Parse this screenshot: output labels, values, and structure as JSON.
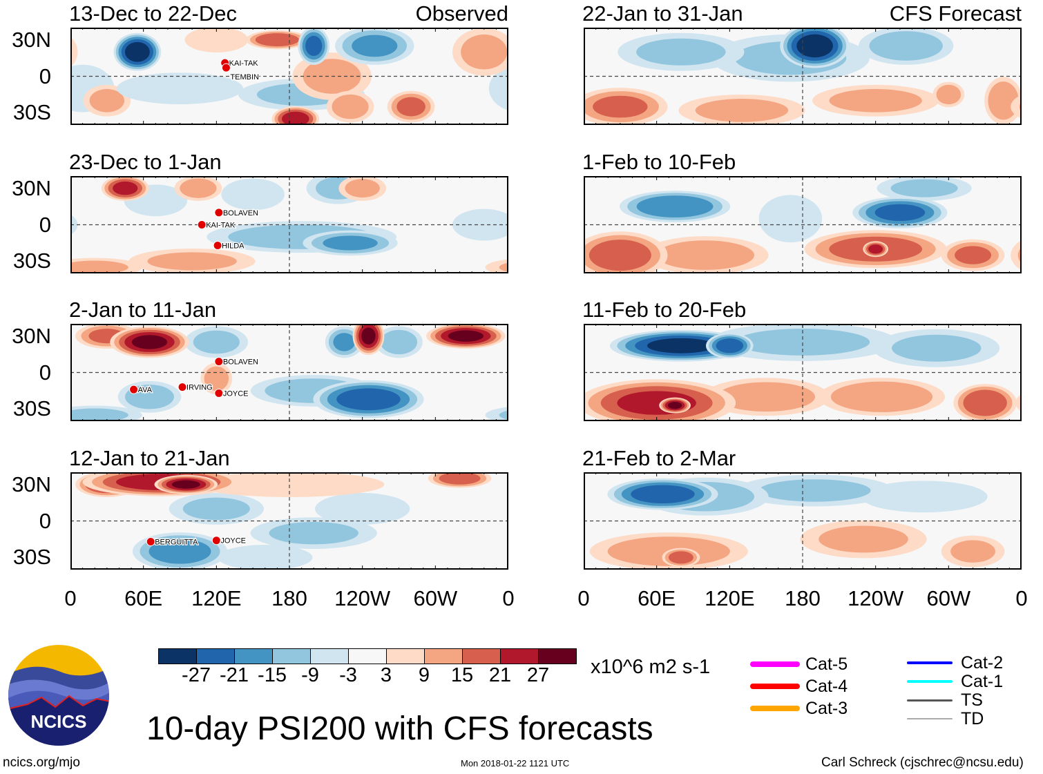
{
  "chart_data": {
    "type": "heatmap",
    "title": "10-day PSI200 with CFS forecasts",
    "units": "x10^6 m2 s-1",
    "colorbar": {
      "levels": [
        -27,
        -21,
        -15,
        -9,
        -3,
        3,
        9,
        15,
        21,
        27
      ],
      "colors": [
        "#0b3366",
        "#2166ac",
        "#4393c3",
        "#92c5de",
        "#d1e5f0",
        "#f7f7f7",
        "#fddbc7",
        "#f4a582",
        "#d6604d",
        "#b2182b",
        "#67001f"
      ]
    },
    "xticks": [
      "0",
      "60E",
      "120E",
      "180",
      "120W",
      "60W",
      "0"
    ],
    "yticks": [
      "30N",
      "0",
      "30S"
    ],
    "lon_range": [
      0,
      360
    ],
    "lat_range": [
      -40,
      40
    ],
    "column_headers": [
      "Observed",
      "CFS Forecast"
    ],
    "panels": [
      {
        "title": "13-Dec to 22-Dec",
        "column": 0,
        "row": 0,
        "anomalies": [
          [
            10,
            -10,
            -5,
            20,
            15
          ],
          [
            340,
            20,
            10,
            20,
            15
          ],
          [
            30,
            -20,
            10,
            15,
            10
          ],
          [
            120,
            30,
            8,
            20,
            8
          ],
          [
            90,
            -10,
            -6,
            40,
            10
          ],
          [
            190,
            -15,
            -9,
            40,
            10
          ],
          [
            215,
            0,
            10,
            25,
            15
          ],
          [
            230,
            -25,
            12,
            15,
            10
          ],
          [
            280,
            -25,
            16,
            15,
            10
          ],
          [
            55,
            20,
            -30,
            15,
            12
          ],
          [
            170,
            30,
            20,
            20,
            6
          ],
          [
            200,
            25,
            -22,
            10,
            12
          ],
          [
            250,
            25,
            -15,
            25,
            12
          ],
          [
            185,
            -35,
            24,
            15,
            8
          ]
        ],
        "storms": [
          {
            "name": "KAI-TAK",
            "lon": 127,
            "lat": 11
          },
          {
            "name": "TEMBIN",
            "lon": 128,
            "lat": 7
          }
        ]
      },
      {
        "title": "23-Dec to 1-Jan",
        "column": 0,
        "row": 1,
        "anomalies": [
          [
            340,
            0,
            -6,
            20,
            10
          ],
          [
            20,
            -35,
            9,
            30,
            6
          ],
          [
            100,
            -30,
            9,
            40,
            8
          ],
          [
            150,
            25,
            -6,
            20,
            10
          ],
          [
            220,
            30,
            -9,
            20,
            10
          ],
          [
            240,
            30,
            10,
            15,
            8
          ],
          [
            190,
            -10,
            -12,
            60,
            10
          ],
          [
            230,
            -15,
            -15,
            30,
            8
          ],
          [
            70,
            20,
            -8,
            20,
            10
          ],
          [
            105,
            30,
            12,
            15,
            8
          ],
          [
            45,
            30,
            22,
            15,
            8
          ]
        ],
        "storms": [
          {
            "name": "BOLAVEN",
            "lon": 122,
            "lat": 10
          },
          {
            "name": "KAI-TAK",
            "lon": 108,
            "lat": 0
          },
          {
            "name": "HILDA",
            "lon": 121,
            "lat": -17
          }
        ]
      },
      {
        "title": "2-Jan to 11-Jan",
        "column": 0,
        "row": 2,
        "anomalies": [
          [
            20,
            -35,
            -9,
            30,
            6
          ],
          [
            120,
            -5,
            12,
            10,
            10
          ],
          [
            200,
            -15,
            -12,
            40,
            10
          ],
          [
            65,
            -20,
            -12,
            20,
            10
          ],
          [
            120,
            25,
            -10,
            20,
            10
          ],
          [
            225,
            25,
            -15,
            12,
            10
          ],
          [
            270,
            25,
            -12,
            15,
            10
          ],
          [
            30,
            30,
            15,
            20,
            8
          ],
          [
            245,
            -22,
            -24,
            35,
            12
          ],
          [
            65,
            25,
            27,
            25,
            10
          ],
          [
            245,
            30,
            27,
            10,
            12
          ],
          [
            325,
            30,
            27,
            25,
            8
          ]
        ],
        "storms": [
          {
            "name": "BOLAVEN",
            "lon": 122,
            "lat": 9
          },
          {
            "name": "AVA",
            "lon": 52,
            "lat": -14
          },
          {
            "name": "IRVING",
            "lon": 92,
            "lat": -12
          },
          {
            "name": "JOYCE",
            "lon": 122,
            "lat": -17
          }
        ]
      },
      {
        "title": "12-Jan to 21-Jan",
        "column": 0,
        "row": 3,
        "anomalies": [
          [
            240,
            10,
            -6,
            30,
            10
          ],
          [
            160,
            -30,
            -6,
            30,
            8
          ],
          [
            120,
            10,
            -9,
            30,
            10
          ],
          [
            200,
            -10,
            -9,
            40,
            10
          ],
          [
            180,
            30,
            8,
            60,
            8
          ],
          [
            30,
            30,
            20,
            20,
            8
          ],
          [
            320,
            35,
            18,
            20,
            6
          ],
          [
            90,
            -25,
            -18,
            30,
            12
          ],
          [
            75,
            32,
            24,
            50,
            9
          ],
          [
            95,
            30,
            27,
            20,
            6
          ]
        ],
        "storms": [
          {
            "name": "BERGUITTA",
            "lon": 66,
            "lat": -17
          },
          {
            "name": "JOYCE",
            "lon": 120,
            "lat": -16
          }
        ]
      },
      {
        "title": "22-Jan to 31-Jan",
        "column": 1,
        "row": 0,
        "anomalies": [
          [
            170,
            15,
            -9,
            50,
            15
          ],
          [
            80,
            20,
            -9,
            40,
            12
          ],
          [
            265,
            25,
            -12,
            30,
            12
          ],
          [
            130,
            -28,
            10,
            40,
            10
          ],
          [
            240,
            -20,
            10,
            40,
            10
          ],
          [
            300,
            -15,
            12,
            10,
            8
          ],
          [
            345,
            -20,
            14,
            12,
            15
          ],
          [
            30,
            -25,
            15,
            30,
            12
          ],
          [
            190,
            25,
            -30,
            22,
            14
          ]
        ],
        "storms": []
      },
      {
        "title": "1-Feb to 10-Feb",
        "column": 1,
        "row": 1,
        "anomalies": [
          [
            170,
            5,
            -6,
            20,
            15
          ],
          [
            280,
            30,
            -9,
            30,
            8
          ],
          [
            100,
            -25,
            12,
            40,
            12
          ],
          [
            320,
            -25,
            15,
            20,
            10
          ],
          [
            30,
            -25,
            18,
            30,
            15
          ],
          [
            240,
            -20,
            18,
            45,
            12
          ],
          [
            75,
            15,
            -20,
            35,
            10
          ],
          [
            260,
            10,
            -22,
            30,
            10
          ],
          [
            240,
            -20,
            24,
            8,
            5
          ]
        ],
        "storms": []
      },
      {
        "title": "11-Feb to 20-Feb",
        "column": 1,
        "row": 2,
        "anomalies": [
          [
            180,
            25,
            -9,
            60,
            12
          ],
          [
            290,
            20,
            -9,
            40,
            12
          ],
          [
            150,
            -20,
            12,
            40,
            12
          ],
          [
            245,
            -20,
            14,
            40,
            12
          ],
          [
            330,
            -25,
            20,
            20,
            12
          ],
          [
            60,
            -25,
            21,
            50,
            15
          ],
          [
            80,
            22,
            -28,
            45,
            10
          ],
          [
            120,
            22,
            -24,
            15,
            8
          ],
          [
            75,
            -27,
            27,
            10,
            5
          ]
        ],
        "storms": []
      },
      {
        "title": "21-Feb to 2-Mar",
        "column": 1,
        "row": 3,
        "anomalies": [
          [
            280,
            20,
            -6,
            40,
            10
          ],
          [
            190,
            25,
            -9,
            50,
            10
          ],
          [
            100,
            20,
            -12,
            40,
            12
          ],
          [
            230,
            -15,
            9,
            40,
            12
          ],
          [
            320,
            -25,
            9,
            20,
            10
          ],
          [
            70,
            -25,
            12,
            50,
            12
          ],
          [
            80,
            -30,
            18,
            12,
            6
          ],
          [
            65,
            22,
            -24,
            35,
            10
          ]
        ],
        "storms": []
      }
    ]
  },
  "legend": {
    "items": [
      {
        "label": "Cat-5",
        "color": "#ff00ff"
      },
      {
        "label": "Cat-4",
        "color": "#ff0000"
      },
      {
        "label": "Cat-3",
        "color": "#ffa500"
      },
      {
        "label": "Cat-2",
        "color": "#0000ff"
      },
      {
        "label": "Cat-1",
        "color": "#00ffff"
      },
      {
        "label": "TS",
        "color": "#555555"
      },
      {
        "label": "TD",
        "color": "#aaaaaa"
      }
    ]
  },
  "logo": {
    "text": "NCICS"
  },
  "footer": {
    "url": "ncics.org/mjo",
    "timestamp": "Mon 2018-01-22 1121 UTC",
    "author": "Carl Schreck (cjschrec@ncsu.edu)"
  }
}
